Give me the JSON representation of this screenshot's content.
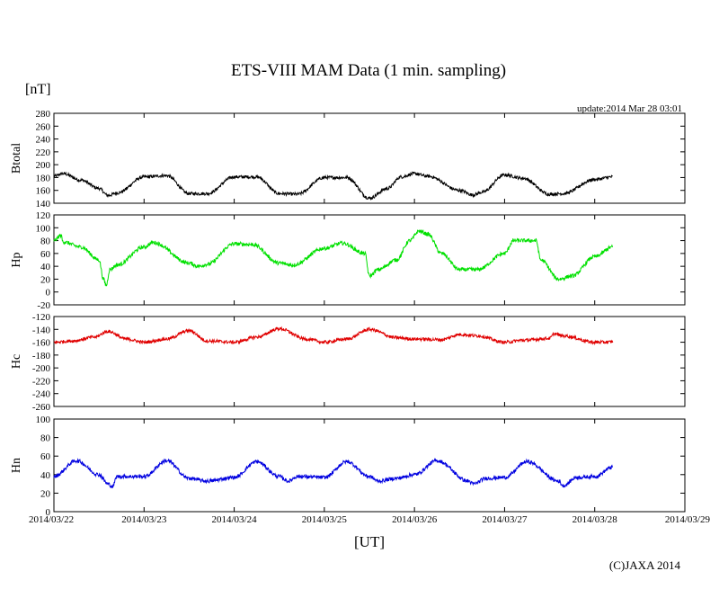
{
  "figure": {
    "title": "ETS-VIII MAM Data (1 min. sampling)",
    "unit": "[nT]",
    "update": "update:2014 Mar 28 03:01",
    "xlabel": "[UT]",
    "credit": "(C)JAXA 2014"
  },
  "chart_data": [
    {
      "type": "line",
      "ylabel": "Btotal",
      "color": "#000000",
      "ylim": [
        140,
        280
      ],
      "yticks": [
        140,
        160,
        180,
        200,
        220,
        240,
        260,
        280
      ],
      "x_dates": [
        "2014/03/22",
        "2014/03/23",
        "2014/03/24",
        "2014/03/25",
        "2014/03/26",
        "2014/03/27",
        "2014/03/28",
        "2014/03/29"
      ],
      "x": [
        0.0,
        0.1,
        0.3,
        0.5,
        0.6,
        0.7,
        1.0,
        1.25,
        1.5,
        1.7,
        2.0,
        2.25,
        2.5,
        2.7,
        3.0,
        3.25,
        3.5,
        3.7,
        3.85,
        4.0,
        4.15,
        4.5,
        4.65,
        4.75,
        5.0,
        5.2,
        5.5,
        5.65,
        6.0,
        6.2
      ],
      "values": [
        182,
        186,
        176,
        163,
        152,
        156,
        181,
        183,
        155,
        155,
        181,
        181,
        155,
        154,
        180,
        180,
        148,
        163,
        181,
        186,
        182,
        160,
        153,
        157,
        184,
        179,
        154,
        155,
        177,
        181
      ],
      "noise": 2.5
    },
    {
      "type": "line",
      "ylabel": "Hp",
      "color": "#00e000",
      "ylim": [
        -20,
        120
      ],
      "yticks": [
        -20,
        0,
        20,
        40,
        60,
        80,
        100,
        120
      ],
      "x": [
        0.0,
        0.08,
        0.1,
        0.3,
        0.5,
        0.55,
        0.58,
        0.62,
        0.7,
        1.0,
        1.1,
        1.5,
        1.6,
        1.7,
        2.0,
        2.2,
        2.5,
        2.65,
        3.0,
        3.2,
        3.45,
        3.5,
        3.6,
        3.8,
        3.95,
        4.05,
        4.15,
        4.3,
        4.5,
        4.7,
        5.0,
        5.1,
        5.35,
        5.4,
        5.6,
        5.75,
        6.0,
        6.2
      ],
      "values": [
        80,
        88,
        78,
        70,
        50,
        20,
        10,
        35,
        42,
        70,
        77,
        45,
        40,
        43,
        75,
        74,
        45,
        42,
        68,
        76,
        60,
        25,
        35,
        50,
        80,
        95,
        90,
        60,
        35,
        35,
        60,
        80,
        80,
        50,
        20,
        25,
        55,
        70
      ],
      "noise": 3
    },
    {
      "type": "line",
      "ylabel": "Hc",
      "color": "#e00000",
      "ylim": [
        -260,
        -120
      ],
      "yticks": [
        -120,
        -140,
        -160,
        -180,
        -200,
        -220,
        -240,
        -260
      ],
      "x": [
        0.0,
        0.2,
        0.45,
        0.6,
        0.8,
        1.0,
        1.25,
        1.5,
        1.7,
        2.0,
        2.25,
        2.5,
        2.8,
        3.0,
        3.25,
        3.5,
        3.8,
        4.0,
        4.3,
        4.5,
        4.7,
        5.0,
        5.2,
        5.5,
        5.55,
        5.65,
        6.0,
        6.15,
        6.2
      ],
      "values": [
        -160,
        -158,
        -152,
        -143,
        -155,
        -160,
        -155,
        -142,
        -158,
        -160,
        -152,
        -139,
        -155,
        -160,
        -155,
        -140,
        -153,
        -155,
        -156,
        -148,
        -150,
        -160,
        -157,
        -154,
        -147,
        -150,
        -160,
        -160,
        -159
      ],
      "noise": 2.5
    },
    {
      "type": "line",
      "ylabel": "Hn",
      "color": "#0000e0",
      "ylim": [
        0,
        100
      ],
      "yticks": [
        0,
        20,
        40,
        60,
        80,
        100
      ],
      "x": [
        0.0,
        0.25,
        0.5,
        0.6,
        0.65,
        0.7,
        1.0,
        1.25,
        1.5,
        1.7,
        2.0,
        2.25,
        2.5,
        2.6,
        2.7,
        3.0,
        3.25,
        3.5,
        3.6,
        3.8,
        4.0,
        4.25,
        4.6,
        4.65,
        4.8,
        5.0,
        5.25,
        5.6,
        5.65,
        5.8,
        6.0,
        6.2
      ],
      "values": [
        38,
        55,
        40,
        30,
        27,
        38,
        38,
        55,
        36,
        33,
        37,
        54,
        38,
        33,
        38,
        37,
        54,
        38,
        33,
        36,
        40,
        55,
        33,
        30,
        36,
        37,
        54,
        33,
        28,
        37,
        38,
        48
      ],
      "noise": 2
    }
  ]
}
